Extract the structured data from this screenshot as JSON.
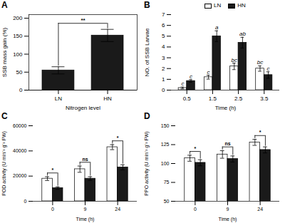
{
  "chart_data": [
    {
      "type": "bar",
      "title": "A",
      "categories": [
        "LN",
        "HN"
      ],
      "values": [
        55,
        152
      ],
      "errors": [
        10,
        17
      ],
      "color": "#1a1a1a",
      "xlabel": "Nitrogen level",
      "ylabel": "SSB mass gain (%)",
      "ylim": [
        0,
        210
      ],
      "yticks": [
        0,
        50,
        100,
        150,
        200
      ],
      "annotations": [
        {
          "text": "**",
          "categories": [
            "LN",
            "HN"
          ]
        }
      ]
    },
    {
      "type": "bar",
      "title": "B",
      "categories": [
        "0.5",
        "1.5",
        "2.5",
        "3.5"
      ],
      "series": [
        {
          "name": "LN",
          "color": "#ffffff",
          "values": [
            0.2,
            1.2,
            2.2,
            2.0
          ],
          "errors": [
            0.08,
            0.18,
            0.3,
            0.25
          ],
          "annotations": [
            "c",
            "c",
            "bc",
            "bc"
          ]
        },
        {
          "name": "HN",
          "color": "#1a1a1a",
          "values": [
            0.85,
            5.0,
            4.4,
            1.4
          ],
          "errors": [
            0.12,
            0.5,
            0.5,
            0.3
          ],
          "annotations": [
            "c",
            "a",
            "ab",
            "c"
          ]
        }
      ],
      "xlabel": "Time (h)",
      "ylabel": "NO. of SSB Larvae",
      "ylim": [
        0,
        7
      ],
      "yticks": [
        0,
        1,
        2,
        3,
        4,
        5,
        6,
        7
      ],
      "legend": "top"
    },
    {
      "type": "bar",
      "title": "C",
      "categories": [
        "0",
        "9",
        "24"
      ],
      "series": [
        {
          "name": "LN",
          "color": "#ffffff",
          "values": [
            18000,
            25500,
            43000
          ],
          "errors": [
            1500,
            2500,
            2000
          ]
        },
        {
          "name": "HN",
          "color": "#1a1a1a",
          "values": [
            10500,
            18000,
            27000
          ],
          "errors": [
            1000,
            1500,
            2000
          ]
        }
      ],
      "xlabel": "Time (h)",
      "ylabel": "POD activity (U min⁻¹ g⁻¹ FW)",
      "ylim": [
        0,
        60000
      ],
      "yticks": [
        0,
        20000,
        40000,
        60000
      ],
      "annotations": [
        {
          "text": "*",
          "category": "0"
        },
        {
          "text": "ns",
          "category": "9"
        },
        {
          "text": "*",
          "category": "24"
        }
      ]
    },
    {
      "type": "bar",
      "title": "D",
      "categories": [
        "0",
        "9",
        "24"
      ],
      "series": [
        {
          "name": "LN",
          "color": "#ffffff",
          "values": [
            107,
            112,
            128
          ],
          "errors": [
            4,
            5,
            4
          ]
        },
        {
          "name": "HN",
          "color": "#1a1a1a",
          "values": [
            101,
            106,
            118
          ],
          "errors": [
            4,
            4,
            4
          ]
        }
      ],
      "xlabel": "Time (h)",
      "ylabel": "PPO activity (U min⁻¹ g⁻¹ FW)",
      "ylim": [
        50,
        150
      ],
      "yticks": [
        50,
        75,
        100,
        125,
        150
      ],
      "annotations": [
        {
          "text": "*",
          "category": "0"
        },
        {
          "text": "ns",
          "category": "9"
        },
        {
          "text": "*",
          "category": "24"
        }
      ]
    }
  ]
}
